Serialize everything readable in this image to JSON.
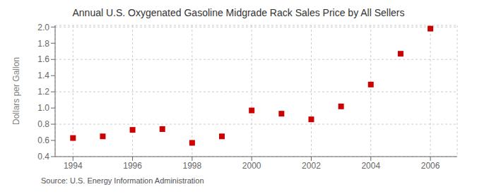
{
  "chart_data": {
    "type": "scatter",
    "title": "Annual U.S. Oxygenated Gasoline Midgrade Rack Sales Price by All Sellers",
    "ylabel": "Dollars per Gallon",
    "annotation": "Source: U.S. Energy Information Administration",
    "x": [
      1994,
      1995,
      1996,
      1997,
      1998,
      1999,
      2000,
      2001,
      2002,
      2003,
      2004,
      2005,
      2006
    ],
    "values": [
      0.63,
      0.65,
      0.73,
      0.74,
      0.57,
      0.65,
      0.97,
      0.93,
      0.86,
      1.02,
      1.29,
      1.67,
      1.98
    ],
    "color": "#cc0000",
    "marker": "square",
    "xlim": [
      1993.4,
      2006.9
    ],
    "xticks": [
      1994,
      1996,
      1998,
      2000,
      2002,
      2004,
      2006
    ],
    "ylim": [
      0.4,
      2.02
    ],
    "yticks": [
      0.4,
      0.6,
      0.8,
      {
        "value": 1,
        "label": "1.0"
      },
      1.2,
      1.4,
      1.6,
      1.8,
      {
        "value": 2,
        "label": "2.0"
      }
    ],
    "grid": true
  }
}
